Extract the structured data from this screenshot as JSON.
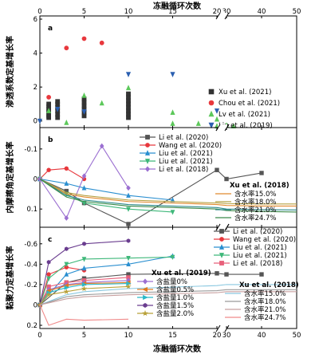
{
  "figure": {
    "top_axis_label": "冻融循环次数",
    "bottom_axis_label": "冻融循环次数",
    "x_tick_labels": [
      "0",
      "5",
      "10",
      "15",
      "20",
      "30",
      "40",
      "50"
    ]
  },
  "chart_data": [
    {
      "type": "scatter",
      "panel_label": "a",
      "ylabel": "渗透系数定基增长率",
      "xlim": [
        0,
        50
      ],
      "ylim": [
        -0.2,
        6
      ],
      "y_ticks": [
        0,
        2,
        4,
        6
      ],
      "x_axis_break": [
        20,
        30
      ],
      "legend_position": "right",
      "series": [
        {
          "name": "Xu et al. (2021)",
          "color": "#333333",
          "marker": "square",
          "points": [
            [
              1,
              0.2
            ],
            [
              1,
              0.3
            ],
            [
              1,
              0.4
            ],
            [
              1,
              0.55
            ],
            [
              1,
              0.7
            ],
            [
              1,
              0.85
            ],
            [
              1,
              1.0
            ],
            [
              2,
              0.2
            ],
            [
              2,
              0.4
            ],
            [
              2,
              0.6
            ],
            [
              2,
              0.8
            ],
            [
              2,
              1.0
            ],
            [
              2,
              1.15
            ],
            [
              5,
              0.3
            ],
            [
              5,
              0.5
            ],
            [
              5,
              0.7
            ],
            [
              5,
              0.9
            ],
            [
              5,
              1.1
            ],
            [
              5,
              1.3
            ],
            [
              10,
              0.2
            ],
            [
              10,
              0.4
            ],
            [
              10,
              0.6
            ],
            [
              10,
              0.8
            ],
            [
              10,
              1.0
            ],
            [
              10,
              1.2
            ],
            [
              10,
              1.4
            ],
            [
              10,
              1.6
            ]
          ]
        },
        {
          "name": "Chou et al. (2021)",
          "color": "#e8383d",
          "marker": "circle",
          "points": [
            [
              1,
              1.4
            ],
            [
              3,
              4.3
            ],
            [
              5,
              4.85
            ],
            [
              7,
              4.6
            ]
          ]
        },
        {
          "name": "Lv et al. (2021)",
          "color": "#5cc85a",
          "marker": "triangle-up",
          "points": [
            [
              1,
              0.6
            ],
            [
              3,
              -0.1
            ],
            [
              5,
              1.5
            ],
            [
              7,
              1.05
            ],
            [
              10,
              1.95
            ],
            [
              15,
              0.5
            ],
            [
              15,
              -0.15
            ],
            [
              20,
              0.1
            ],
            [
              20,
              -0.3
            ],
            [
              22,
              -0.15
            ],
            [
              30,
              -0.25
            ],
            [
              32,
              -0.3
            ]
          ]
        },
        {
          "name": "Liu et al. (2019)",
          "color": "#2a5fb0",
          "marker": "triangle-down",
          "points": [
            [
              0,
              0
            ],
            [
              2,
              0.7
            ],
            [
              5,
              0.55
            ],
            [
              10,
              2.75
            ],
            [
              15,
              2.75
            ],
            [
              20,
              0.6
            ]
          ]
        }
      ]
    },
    {
      "type": "line",
      "panel_label": "b",
      "ylabel": "内摩擦角定基增长率",
      "xlim": [
        0,
        50
      ],
      "ylim": [
        0.15,
        -0.15
      ],
      "y_ticks": [
        -0.1,
        0.0,
        0.1
      ],
      "y_tick_labels": [
        "-0.1",
        "0",
        "0.1"
      ],
      "x_axis_break": [
        20,
        30
      ],
      "series": [
        {
          "name": "Li et al. (2020)",
          "color": "#555555",
          "marker": "square",
          "x": [
            0,
            3,
            5,
            10,
            20,
            30,
            40
          ],
          "y": [
            0,
            0.04,
            0.08,
            0.15,
            -0.03,
            0.0,
            -0.02
          ]
        },
        {
          "name": "Wang et al. (2020)",
          "color": "#e8383d",
          "marker": "circle",
          "x": [
            0,
            1,
            3,
            5
          ],
          "y": [
            0,
            -0.03,
            -0.035,
            0.0
          ]
        },
        {
          "name": "Liu et al. (2021)",
          "color": "#2a8fd0",
          "marker": "triangle-up",
          "x": [
            0,
            3,
            5,
            10,
            15
          ],
          "y": [
            0,
            0.015,
            0.03,
            0.055,
            0.07
          ]
        },
        {
          "name": "Liu et al. (2021)",
          "color": "#3fb87a",
          "marker": "triangle-down",
          "x": [
            0,
            3,
            5,
            10,
            15
          ],
          "y": [
            0,
            0.05,
            0.08,
            0.1,
            0.11
          ]
        },
        {
          "name": "Li et al. (2018)",
          "color": "#9b6fd1",
          "marker": "diamond",
          "x": [
            0,
            3,
            5,
            7,
            10
          ],
          "y": [
            0,
            0.13,
            -0.01,
            -0.11,
            0.03
          ]
        },
        {
          "name": "含水率15.0%",
          "color": "#e08a2e",
          "marker": "none",
          "x": [
            0,
            3,
            5,
            10,
            20,
            30,
            40,
            50
          ],
          "y": [
            0,
            0.05,
            0.06,
            0.075,
            0.085,
            0.088,
            0.09,
            0.09
          ]
        },
        {
          "name": "含水率18.0%",
          "color": "#b5a040",
          "marker": "none",
          "x": [
            0,
            3,
            5,
            10,
            20,
            30,
            40,
            50
          ],
          "y": [
            0,
            0.045,
            0.055,
            0.07,
            0.08,
            0.082,
            0.083,
            0.083
          ]
        },
        {
          "name": "含水率21.0%",
          "color": "#2d8a8a",
          "marker": "none",
          "x": [
            0,
            3,
            5,
            10,
            20,
            30,
            40,
            50
          ],
          "y": [
            0,
            0.055,
            0.07,
            0.085,
            0.095,
            0.1,
            0.102,
            0.103
          ]
        },
        {
          "name": "含水率24.7%",
          "color": "#3a8a4a",
          "marker": "none",
          "x": [
            0,
            3,
            5,
            10,
            20,
            30,
            40,
            50
          ],
          "y": [
            0,
            0.06,
            0.075,
            0.09,
            0.1,
            0.105,
            0.108,
            0.11
          ]
        }
      ],
      "legend_groups": [
        {
          "title": "",
          "items": [
            0,
            1,
            2,
            3,
            4
          ]
        },
        {
          "title": "Xu et al. (2018)",
          "items": [
            5,
            6,
            7,
            8
          ]
        }
      ]
    },
    {
      "type": "line",
      "panel_label": "c",
      "ylabel": "黏聚力定基增长率",
      "xlim": [
        0,
        50
      ],
      "ylim": [
        0.2,
        -0.7
      ],
      "y_ticks": [
        -0.6,
        -0.4,
        -0.2,
        0.0,
        0.2
      ],
      "y_tick_labels": [
        "-0.6",
        "-0.4",
        "-0.2",
        "0",
        "0.2"
      ],
      "x_axis_break": [
        20,
        30
      ],
      "series": [
        {
          "name": "Li et al. (2020)",
          "color": "#555555",
          "marker": "square",
          "x": [
            0,
            3,
            5,
            10,
            20,
            30,
            40
          ],
          "y": [
            0,
            -0.22,
            -0.26,
            -0.3,
            -0.31,
            -0.3,
            -0.3
          ]
        },
        {
          "name": "Wang et al. (2020)",
          "color": "#e8383d",
          "marker": "circle",
          "x": [
            0,
            1,
            3,
            5
          ],
          "y": [
            0,
            -0.3,
            -0.37,
            -0.34
          ]
        },
        {
          "name": "Liu et al. (2021)",
          "color": "#2a8fd0",
          "marker": "triangle-up",
          "x": [
            0,
            3,
            5,
            10,
            15
          ],
          "y": [
            0,
            -0.3,
            -0.36,
            -0.4,
            -0.48
          ]
        },
        {
          "name": "Liu et al. (2021)",
          "color": "#3fb87a",
          "marker": "triangle-down",
          "x": [
            0,
            1,
            3,
            5,
            10,
            15
          ],
          "y": [
            0,
            -0.26,
            -0.4,
            -0.45,
            -0.46,
            -0.47
          ]
        },
        {
          "name": "Li et al. (2018)",
          "color": "#e8607a",
          "marker": "square",
          "x": [
            0,
            1,
            3,
            5,
            10
          ],
          "y": [
            0,
            -0.18,
            -0.22,
            -0.24,
            -0.27
          ]
        },
        {
          "name": "含盐量0%",
          "color": "#9b6fd1",
          "marker": "diamond",
          "x": [
            0,
            1,
            3,
            5,
            10
          ],
          "y": [
            0,
            -0.15,
            -0.2,
            -0.22,
            -0.24
          ]
        },
        {
          "name": "含盐量0.5%",
          "color": "#e07a1e",
          "marker": "triangle-left",
          "x": [
            0,
            1,
            3,
            5,
            10
          ],
          "y": [
            0,
            -0.14,
            -0.19,
            -0.21,
            -0.22
          ]
        },
        {
          "name": "含盐量1.0%",
          "color": "#2ab8c8",
          "marker": "triangle-right",
          "x": [
            0,
            1,
            3,
            5,
            10
          ],
          "y": [
            0,
            -0.12,
            -0.17,
            -0.2,
            -0.21
          ]
        },
        {
          "name": "含盐量1.5%",
          "color": "#6a3d8f",
          "marker": "hexagon",
          "x": [
            0,
            1,
            3,
            5,
            10
          ],
          "y": [
            0,
            -0.42,
            -0.55,
            -0.6,
            -0.63
          ]
        },
        {
          "name": "含盐量2.0%",
          "color": "#b8a038",
          "marker": "star",
          "x": [
            0,
            1,
            3,
            5,
            10
          ],
          "y": [
            0,
            -0.1,
            -0.13,
            -0.16,
            -0.18
          ]
        },
        {
          "name": "含水率15.0%",
          "color": "#8ac8e0",
          "marker": "none",
          "x": [
            0,
            3,
            5,
            10,
            20,
            30,
            40,
            50
          ],
          "y": [
            0,
            -0.1,
            -0.13,
            -0.16,
            -0.19,
            -0.2,
            -0.2,
            -0.2
          ]
        },
        {
          "name": "含水率18.0%",
          "color": "#9a9a9a",
          "marker": "none",
          "x": [
            0,
            3,
            5,
            10,
            20,
            30,
            40,
            50
          ],
          "y": [
            0,
            -0.08,
            -0.1,
            -0.12,
            -0.14,
            -0.15,
            -0.15,
            -0.15
          ]
        },
        {
          "name": "含水率21.0%",
          "color": "#c8a0a0",
          "marker": "none",
          "x": [
            0,
            3,
            5,
            10,
            20,
            30,
            40,
            50
          ],
          "y": [
            0,
            -0.06,
            -0.08,
            -0.1,
            -0.12,
            -0.13,
            -0.13,
            -0.13
          ]
        },
        {
          "name": "含水率24.7%",
          "color": "#f08a8a",
          "marker": "none",
          "x": [
            0,
            1,
            3,
            5,
            10
          ],
          "y": [
            0,
            0.2,
            0.14,
            0.15,
            0.14
          ]
        }
      ],
      "legend_groups": [
        {
          "title": "",
          "items": [
            0,
            1,
            2,
            3,
            4
          ]
        },
        {
          "title": "Xu et al. (2019)",
          "items": [
            5,
            6,
            7,
            8,
            9
          ]
        },
        {
          "title": "Xu et al. (2018)",
          "items": [
            10,
            11,
            12,
            13
          ]
        }
      ]
    }
  ]
}
